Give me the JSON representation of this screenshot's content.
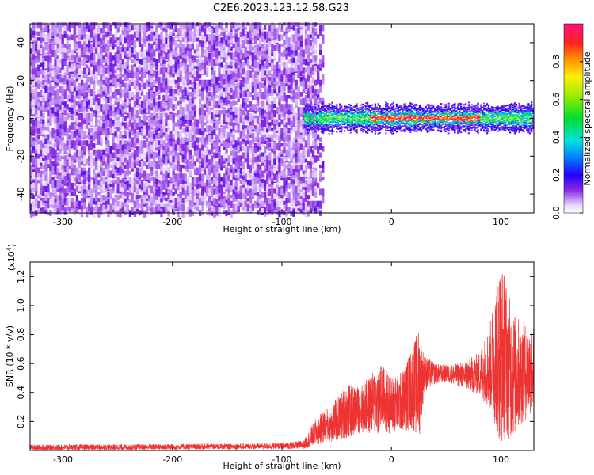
{
  "title": "C2E6.2023.123.12.58.G23",
  "chart_data": [
    {
      "type": "heatmap",
      "name": "spectrogram",
      "xlabel": "Height of straight line (km)",
      "ylabel": "Frequency (Hz)",
      "xlim": [
        -330,
        130
      ],
      "ylim": [
        -50,
        50
      ],
      "xticks": [
        -300,
        -200,
        -100,
        0,
        100
      ],
      "xtick_labels": [
        "-300",
        "-200",
        "-100",
        "0",
        "100"
      ],
      "yticks": [
        -40,
        -20,
        0,
        20,
        40
      ],
      "ytick_labels": [
        "-40",
        "-20",
        "0",
        "20",
        "40"
      ],
      "noise_region": {
        "x_start": -330,
        "x_end": -70,
        "freq_range": [
          -50,
          50
        ],
        "typical_amplitude": 0.1
      },
      "signal_band": {
        "x_start": -80,
        "x_end": 130,
        "center_freq": 0,
        "bandwidth_hz": 10,
        "peak_amplitude": 0.95,
        "peak_x_range": [
          -20,
          80
        ]
      },
      "colorbar": {
        "label": "Normalized spectral amplitude",
        "range": [
          0,
          1
        ],
        "ticks": [
          0.0,
          0.2,
          0.4,
          0.6,
          0.8
        ],
        "tick_labels": [
          "0.0",
          "0.2",
          "0.4",
          "0.6",
          "0.8"
        ]
      }
    },
    {
      "type": "line",
      "name": "snr",
      "xlabel": "Height of straight line (km)",
      "ylabel": "SNR (10 * v/v)",
      "ylabel_scale": "(x10",
      "ylabel_scale_exp": "4",
      "ylabel_scale_close": ")",
      "xlim": [
        -330,
        130
      ],
      "ylim": [
        0,
        13000
      ],
      "xticks": [
        -300,
        -200,
        -100,
        0,
        100
      ],
      "xtick_labels": [
        "-300",
        "-200",
        "-100",
        "0",
        "100"
      ],
      "yticks": [
        2000,
        4000,
        6000,
        8000,
        10000,
        12000
      ],
      "ytick_labels": [
        "0.2",
        "0.4",
        "0.6",
        "0.8",
        "1.0",
        "1.2"
      ],
      "color": "#ee3333",
      "envelope": {
        "x": [
          -330,
          -200,
          -100,
          -80,
          -70,
          -60,
          -50,
          -40,
          -30,
          -20,
          -10,
          0,
          10,
          20,
          25,
          30,
          40,
          50,
          60,
          70,
          80,
          90,
          95,
          100,
          105,
          110,
          120,
          130
        ],
        "center": [
          200,
          250,
          300,
          400,
          1200,
          1700,
          2100,
          2700,
          2800,
          3100,
          3600,
          3100,
          3400,
          4400,
          4500,
          5300,
          5300,
          5300,
          5200,
          5200,
          5300,
          5800,
          6600,
          6800,
          6300,
          5200,
          5400,
          5600
        ],
        "spread": [
          200,
          200,
          200,
          300,
          900,
          1200,
          1500,
          1900,
          1600,
          2000,
          2500,
          2000,
          2100,
          3000,
          4000,
          1300,
          700,
          600,
          800,
          1100,
          1500,
          3000,
          5000,
          6500,
          5500,
          4500,
          3500,
          3000
        ]
      }
    }
  ]
}
